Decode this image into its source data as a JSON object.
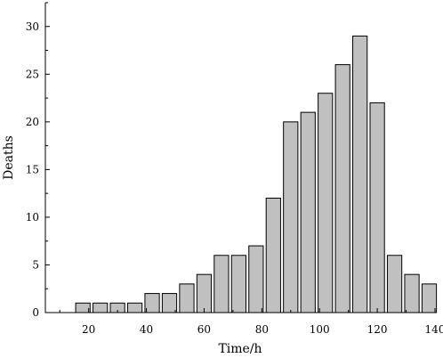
{
  "chart_data": {
    "type": "bar",
    "title": "",
    "xlabel": "Time/h",
    "ylabel": "Deaths",
    "xlim": [
      5,
      140
    ],
    "ylim": [
      0,
      32.5
    ],
    "x_ticks": [
      20,
      40,
      60,
      80,
      100,
      120,
      140
    ],
    "y_ticks": [
      0,
      5,
      10,
      15,
      20,
      25,
      30
    ],
    "bar_width": 5,
    "grid": false,
    "legend": "none",
    "bar_color": "#c0c0c0",
    "series": [
      {
        "x": [
          18,
          24,
          30,
          36,
          42,
          48,
          54,
          60,
          66,
          72,
          78,
          84,
          90,
          96,
          102,
          108,
          114,
          120,
          126,
          132,
          138
        ],
        "values": [
          1,
          1,
          1,
          1,
          2,
          2,
          3,
          4,
          6,
          6,
          7,
          12,
          20,
          21,
          23,
          26,
          29,
          22,
          6,
          4,
          3
        ]
      }
    ]
  }
}
